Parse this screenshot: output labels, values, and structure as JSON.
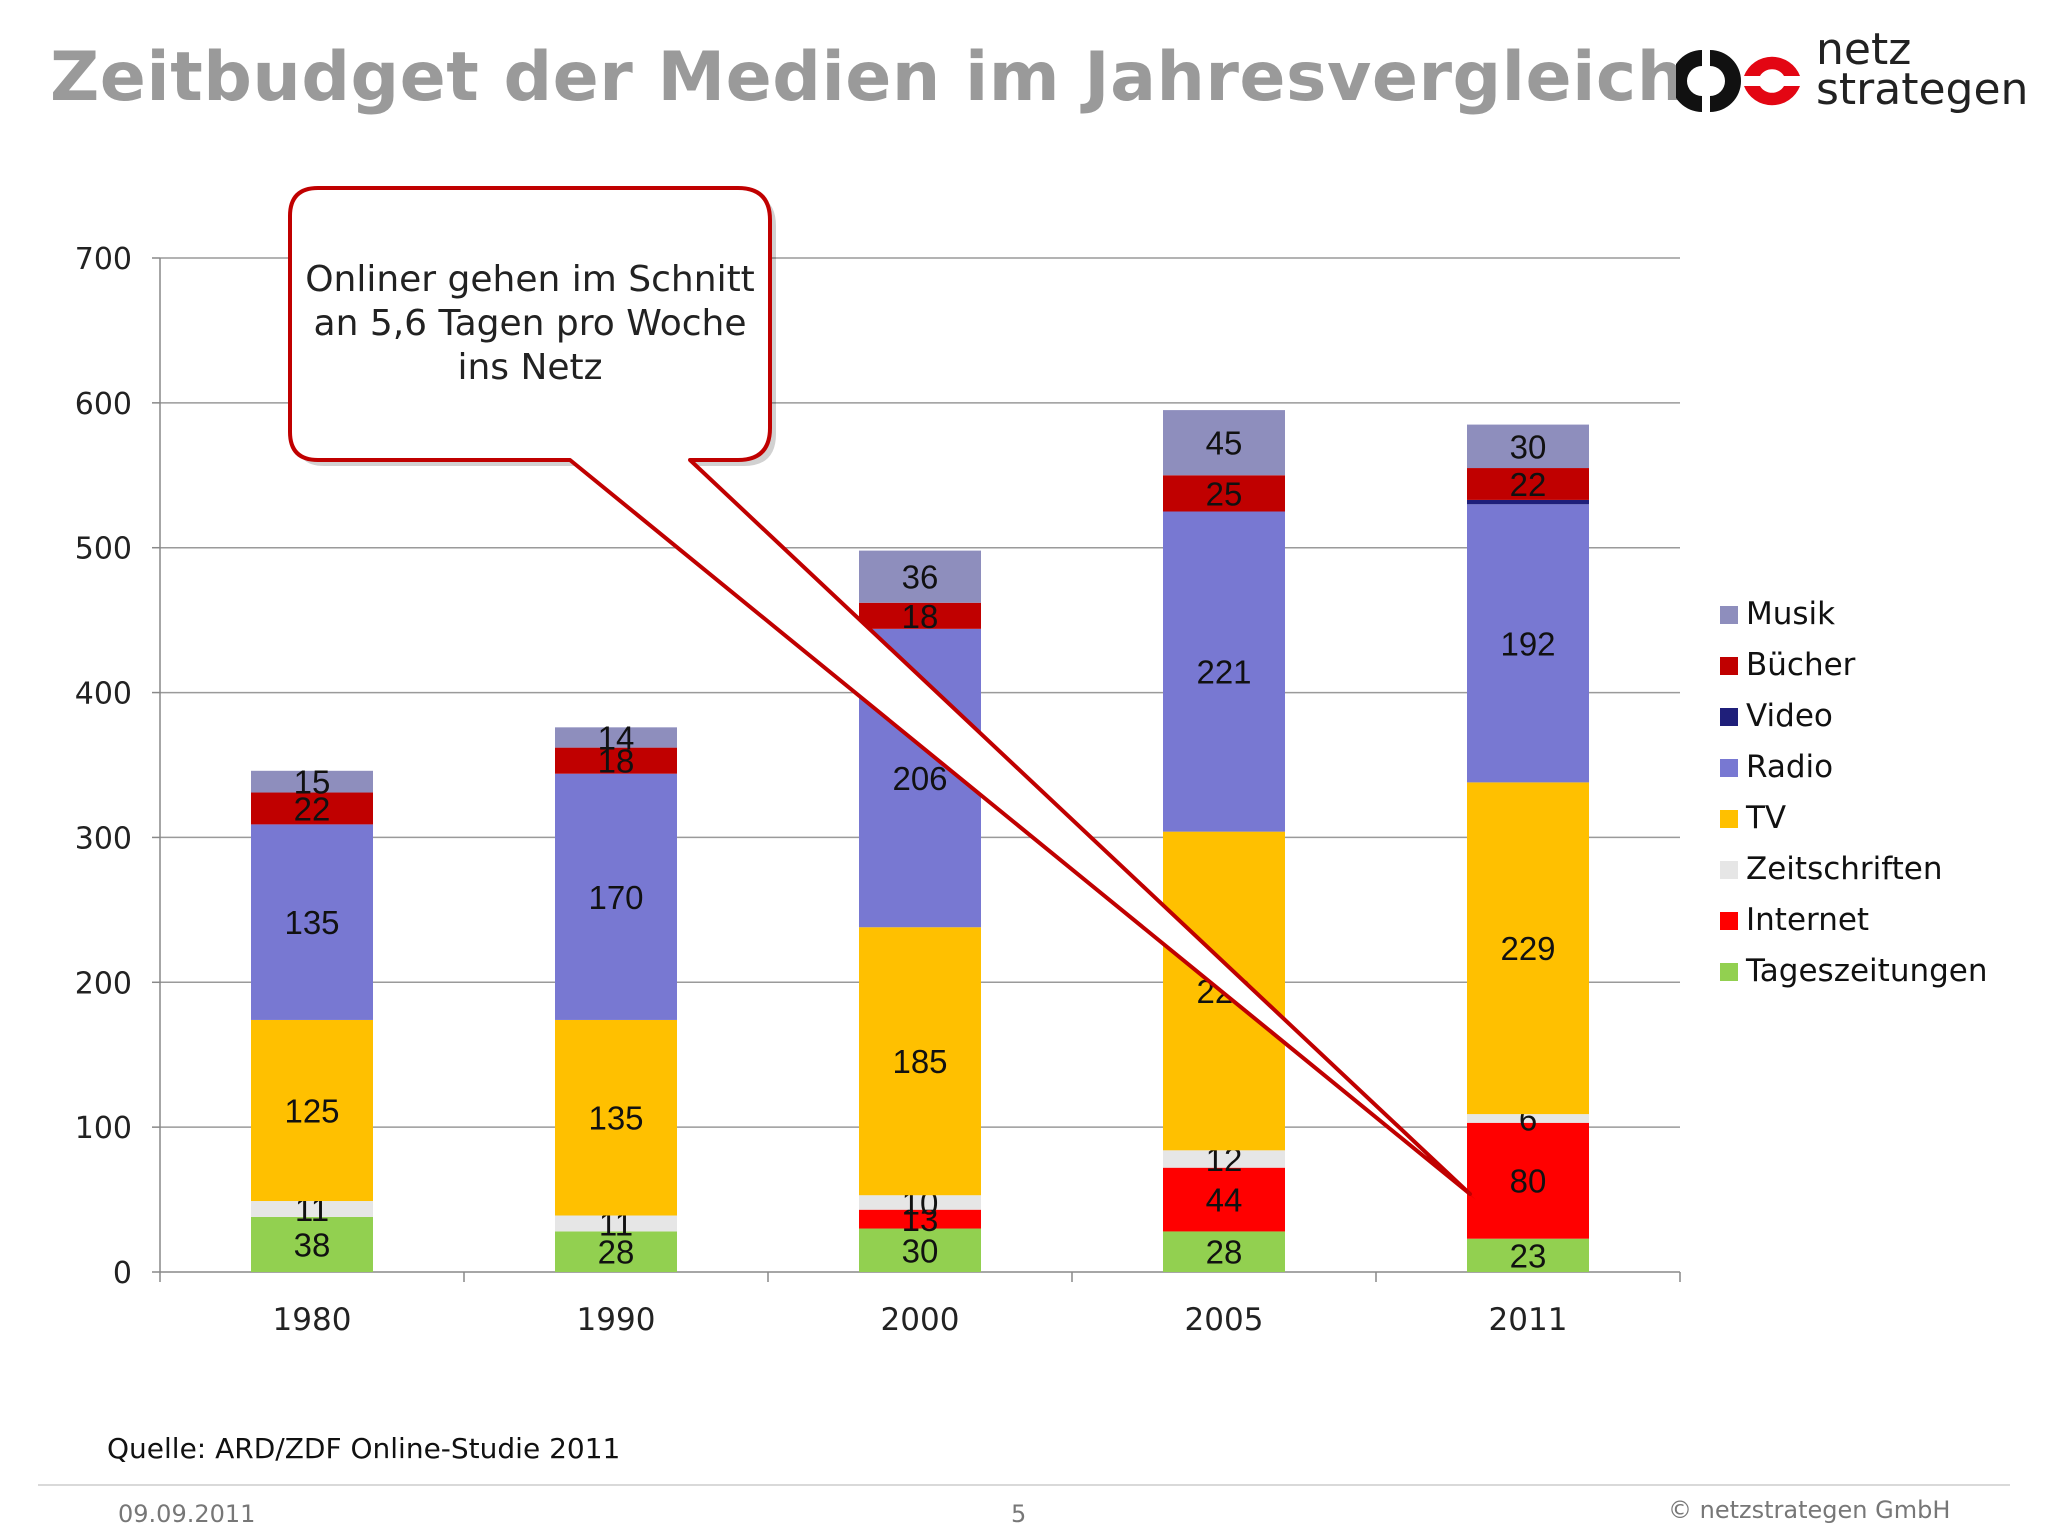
{
  "title": "Zeitbudget der Medien im Jahresvergleich",
  "logo": {
    "line1": "netz",
    "line2": "strategen"
  },
  "callout": {
    "text": "Onliner gehen im Schnitt an 5,6 Tagen pro Woche ins Netz"
  },
  "source": "Quelle: ARD/ZDF Online-Studie 2011",
  "footer": {
    "date": "09.09.2011",
    "page": "5",
    "copyright": "© netzstrategen GmbH"
  },
  "chart_data": {
    "type": "bar",
    "stacked": true,
    "categories": [
      "1980",
      "1990",
      "2000",
      "2005",
      "2011"
    ],
    "ylim": [
      0,
      700
    ],
    "yticks": [
      "0",
      "100",
      "200",
      "300",
      "400",
      "500",
      "600",
      "700"
    ],
    "grid": true,
    "legend_position": "right",
    "series": [
      {
        "name": "Tageszeitungen",
        "color": "#92d050",
        "values": [
          38,
          28,
          30,
          28,
          23
        ],
        "labels": [
          "38",
          "28",
          "30",
          "28",
          "23"
        ]
      },
      {
        "name": "Internet",
        "color": "#ff0000",
        "values": [
          0,
          0,
          13,
          44,
          80
        ],
        "labels": [
          "",
          "",
          "13",
          "44",
          "80"
        ]
      },
      {
        "name": "Zeitschriften",
        "color": "#e6e6e6",
        "values": [
          11,
          11,
          10,
          12,
          6
        ],
        "labels": [
          "11",
          "11",
          "10",
          "12",
          "6"
        ]
      },
      {
        "name": "TV",
        "color": "#ffc000",
        "values": [
          125,
          135,
          185,
          220,
          229
        ],
        "labels": [
          "125",
          "135",
          "185",
          "220",
          "229"
        ]
      },
      {
        "name": "Radio",
        "color": "#7878d2",
        "values": [
          135,
          170,
          206,
          221,
          192
        ],
        "labels": [
          "135",
          "170",
          "206",
          "221",
          "192"
        ]
      },
      {
        "name": "Video",
        "color": "#1f1f7a",
        "values": [
          0,
          0,
          0,
          0,
          3
        ],
        "labels": [
          "",
          "",
          "",
          "",
          ""
        ]
      },
      {
        "name": "Bücher",
        "color": "#c00000",
        "values": [
          22,
          18,
          18,
          25,
          22
        ],
        "labels": [
          "22",
          "18",
          "18",
          "25",
          "22"
        ]
      },
      {
        "name": "Musik",
        "color": "#8e8ebd",
        "values": [
          15,
          14,
          36,
          45,
          30
        ],
        "labels": [
          "15",
          "14",
          "36",
          "45",
          "30"
        ]
      }
    ],
    "legend_order": [
      "Musik",
      "Bücher",
      "Video",
      "Radio",
      "TV",
      "Zeitschriften",
      "Internet",
      "Tageszeitungen"
    ]
  }
}
